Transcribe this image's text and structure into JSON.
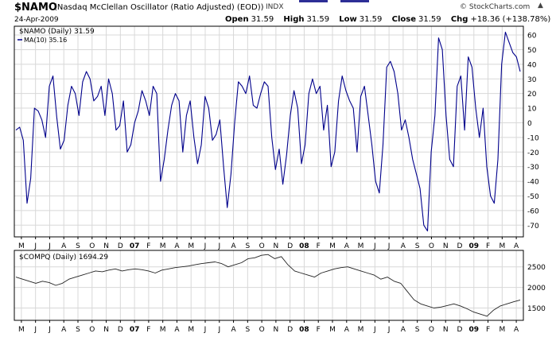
{
  "header": {
    "symbol": "$NAMO",
    "description": "(Nasdaq McClellan Oscillator (Ratio Adjusted) (EOD))",
    "exchange": "INDX",
    "date": "24-Apr-2009",
    "brand": "© StockCharts.com",
    "quote": {
      "open_label": "Open",
      "open": "31.59",
      "high_label": "High",
      "high": "31.59",
      "low_label": "Low",
      "low": "31.59",
      "close_label": "Close",
      "close": "31.59",
      "chg_label": "Chg",
      "chg": "+18.36 (+138.78%)",
      "chg_arrow": "▲"
    }
  },
  "colors": {
    "line": "#00008b",
    "grid": "#d8d8d8",
    "axis": "#000000"
  },
  "chart_data": [
    {
      "type": "line",
      "title": "$NAMO (Daily)",
      "legend": [
        {
          "label": "$NAMO (Daily) 31.59",
          "style": "none"
        },
        {
          "label": "MA(10) 35.16",
          "style": "line"
        }
      ],
      "x_tick_labels": [
        "M",
        "J",
        "J",
        "A",
        "S",
        "O",
        "N",
        "D",
        "07",
        "F",
        "M",
        "A",
        "M",
        "J",
        "J",
        "A",
        "S",
        "O",
        "N",
        "D",
        "08",
        "F",
        "M",
        "A",
        "M",
        "J",
        "J",
        "A",
        "S",
        "O",
        "N",
        "D",
        "09",
        "F",
        "M",
        "A"
      ],
      "ylim": [
        -78,
        66
      ],
      "yticks": [
        60,
        50,
        40,
        30,
        20,
        10,
        0,
        -10,
        -20,
        -30,
        -40,
        -50,
        -60,
        -70
      ],
      "series": [
        {
          "name": "MA(10)",
          "values": [
            -5,
            -3,
            -12,
            -55,
            -38,
            10,
            8,
            2,
            -10,
            25,
            32,
            4,
            -18,
            -12,
            12,
            25,
            20,
            5,
            28,
            35,
            30,
            15,
            18,
            25,
            5,
            30,
            20,
            -5,
            -2,
            15,
            -20,
            -15,
            0,
            8,
            22,
            15,
            5,
            25,
            20,
            -40,
            -25,
            -5,
            12,
            20,
            15,
            -20,
            5,
            15,
            -10,
            -28,
            -15,
            18,
            10,
            -12,
            -8,
            2,
            -30,
            -58,
            -35,
            0,
            28,
            25,
            20,
            32,
            12,
            10,
            20,
            28,
            25,
            -10,
            -32,
            -18,
            -42,
            -22,
            5,
            22,
            10,
            -28,
            -15,
            20,
            30,
            20,
            25,
            -5,
            12,
            -30,
            -20,
            15,
            32,
            22,
            15,
            10,
            -20,
            18,
            25,
            5,
            -15,
            -40,
            -48,
            -15,
            38,
            42,
            35,
            20,
            -5,
            2,
            -10,
            -25,
            -35,
            -45,
            -70,
            -74,
            -20,
            5,
            58,
            50,
            5,
            -25,
            -30,
            25,
            32,
            -5,
            45,
            38,
            10,
            -10,
            10,
            -30,
            -50,
            -55,
            -25,
            40,
            62,
            55,
            48,
            45,
            35
          ]
        }
      ]
    },
    {
      "type": "line",
      "title": "$COMPQ (Daily)",
      "legend": [
        {
          "label": "$COMPQ (Daily) 1694.29",
          "style": "none"
        }
      ],
      "x_tick_labels": [
        "M",
        "J",
        "J",
        "A",
        "S",
        "O",
        "N",
        "D",
        "07",
        "F",
        "M",
        "A",
        "M",
        "J",
        "J",
        "A",
        "S",
        "O",
        "N",
        "D",
        "08",
        "F",
        "M",
        "A",
        "M",
        "J",
        "J",
        "A",
        "S",
        "O",
        "N",
        "D",
        "09",
        "F",
        "M",
        "A"
      ],
      "ylim": [
        1200,
        2900
      ],
      "yticks": [
        2500,
        2000,
        1500
      ],
      "series": [
        {
          "name": "$COMPQ",
          "values": [
            2250,
            2200,
            2150,
            2100,
            2150,
            2120,
            2050,
            2100,
            2200,
            2250,
            2300,
            2350,
            2400,
            2380,
            2420,
            2450,
            2400,
            2430,
            2450,
            2430,
            2400,
            2350,
            2420,
            2450,
            2480,
            2500,
            2520,
            2550,
            2580,
            2600,
            2620,
            2580,
            2500,
            2550,
            2600,
            2700,
            2720,
            2780,
            2800,
            2700,
            2750,
            2550,
            2400,
            2350,
            2300,
            2250,
            2350,
            2400,
            2450,
            2480,
            2500,
            2450,
            2400,
            2350,
            2300,
            2200,
            2250,
            2150,
            2100,
            1900,
            1700,
            1600,
            1550,
            1500,
            1520,
            1560,
            1600,
            1550,
            1480,
            1400,
            1350,
            1300,
            1450,
            1550,
            1600,
            1650,
            1694
          ]
        }
      ]
    }
  ]
}
